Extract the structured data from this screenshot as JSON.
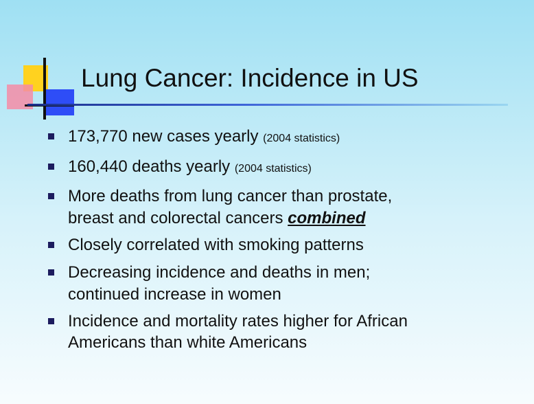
{
  "slide": {
    "title": "Lung Cancer: Incidence in US",
    "bullets": [
      {
        "text": "173,770 new cases yearly ",
        "note": "(2004 statistics)"
      },
      {
        "text": "160,440 deaths yearly ",
        "note": "(2004 statistics)"
      },
      {
        "line1": "More deaths from lung cancer than prostate,",
        "line2_pre": "breast and colorectal cancers ",
        "line2_emph": "combined"
      },
      {
        "text": "Closely correlated with smoking patterns"
      },
      {
        "line1": "Decreasing incidence and deaths in men;",
        "line2": "continued increase in women"
      },
      {
        "line1": "Incidence and mortality rates higher for African",
        "line2": "Americans than white Americans"
      }
    ]
  },
  "colors": {
    "background_top": "#9fe0f3",
    "title_rule": "#1a2f8a",
    "bullet": "#1c1c5e",
    "logo_yellow": "#ffd21f",
    "logo_pink": "#f58ca6",
    "logo_blue": "#2e4df7"
  }
}
